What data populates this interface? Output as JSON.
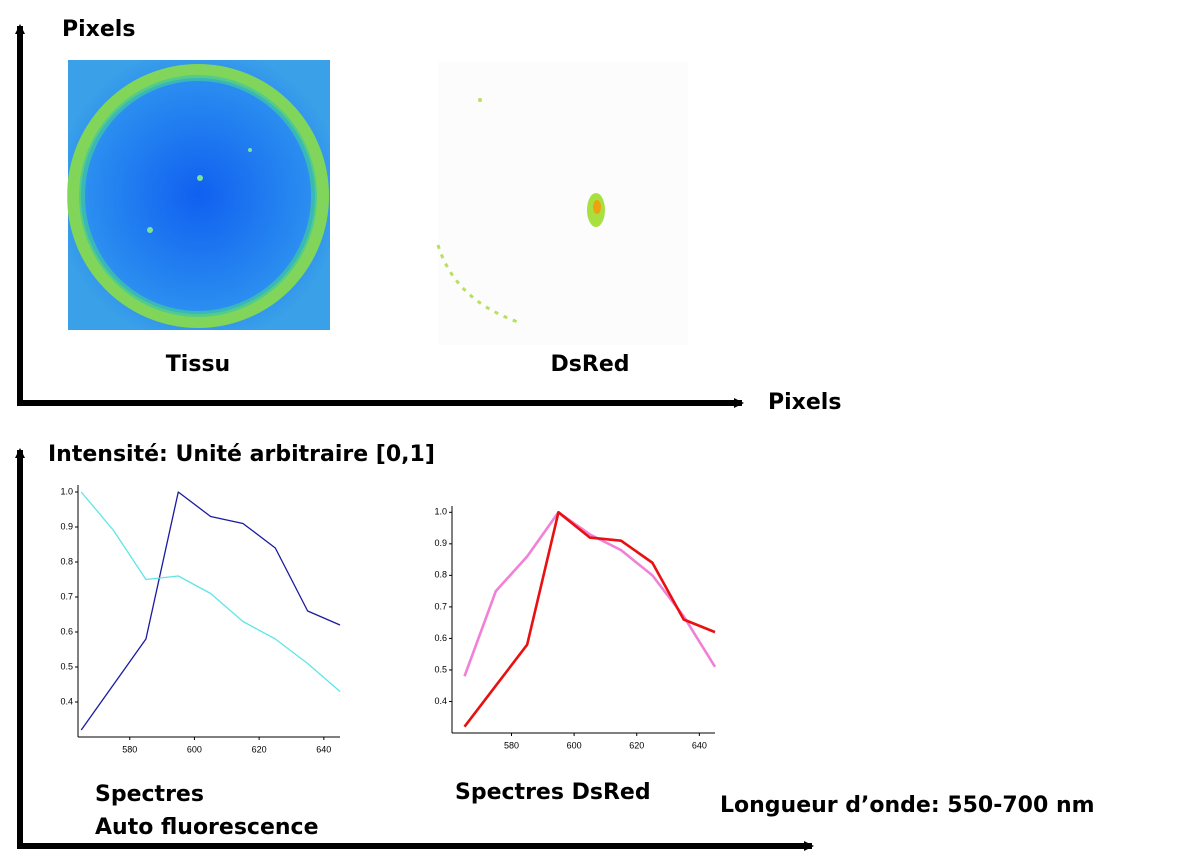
{
  "image_panel": {
    "y_axis_label": "Pixels",
    "x_axis_label": "Pixels",
    "captions": [
      "Tissu",
      "DsRed"
    ]
  },
  "spectra_panel": {
    "y_axis_label": "Intensité: Unité arbitraire [0,1]",
    "x_axis_label": "Longueur d’onde: 550-700 nm",
    "captions": [
      [
        "Spectres",
        "Auto fluorescence"
      ],
      [
        "Spectres DsRed"
      ]
    ]
  },
  "chart_data": [
    {
      "type": "line",
      "x": [
        565,
        575,
        585,
        595,
        605,
        615,
        625,
        635,
        645
      ],
      "xlim": [
        564,
        645
      ],
      "xticks": [
        580,
        600,
        620,
        640
      ],
      "ylim": [
        0.3,
        1.02
      ],
      "yticks": [
        0.4,
        0.5,
        0.6,
        0.7,
        0.8,
        0.9,
        {
          "value": 1,
          "label": "1.0"
        }
      ],
      "series": [
        {
          "color": "#1a1aa0",
          "values": [
            0.32,
            0.45,
            0.58,
            1.0,
            0.93,
            0.91,
            0.84,
            0.66,
            0.62
          ]
        },
        {
          "color": "#5ee6e6",
          "values": [
            1.0,
            0.89,
            0.75,
            0.76,
            0.71,
            0.63,
            0.58,
            0.51,
            0.43
          ]
        }
      ]
    },
    {
      "type": "line",
      "x": [
        565,
        575,
        585,
        595,
        605,
        615,
        625,
        635,
        645
      ],
      "xlim": [
        561,
        645
      ],
      "xticks": [
        580,
        600,
        620,
        640
      ],
      "ylim": [
        0.3,
        1.02
      ],
      "yticks": [
        0.4,
        0.5,
        0.6,
        0.7,
        0.8,
        0.9,
        {
          "value": 1,
          "label": "1.0"
        }
      ],
      "series": [
        {
          "color": "#f080d8",
          "values": [
            0.48,
            0.75,
            0.86,
            1.0,
            0.93,
            0.88,
            0.8,
            0.67,
            0.51
          ]
        },
        {
          "color": "#e81010",
          "values": [
            0.32,
            0.45,
            0.58,
            1.0,
            0.92,
            0.91,
            0.84,
            0.66,
            0.62
          ]
        }
      ]
    }
  ]
}
